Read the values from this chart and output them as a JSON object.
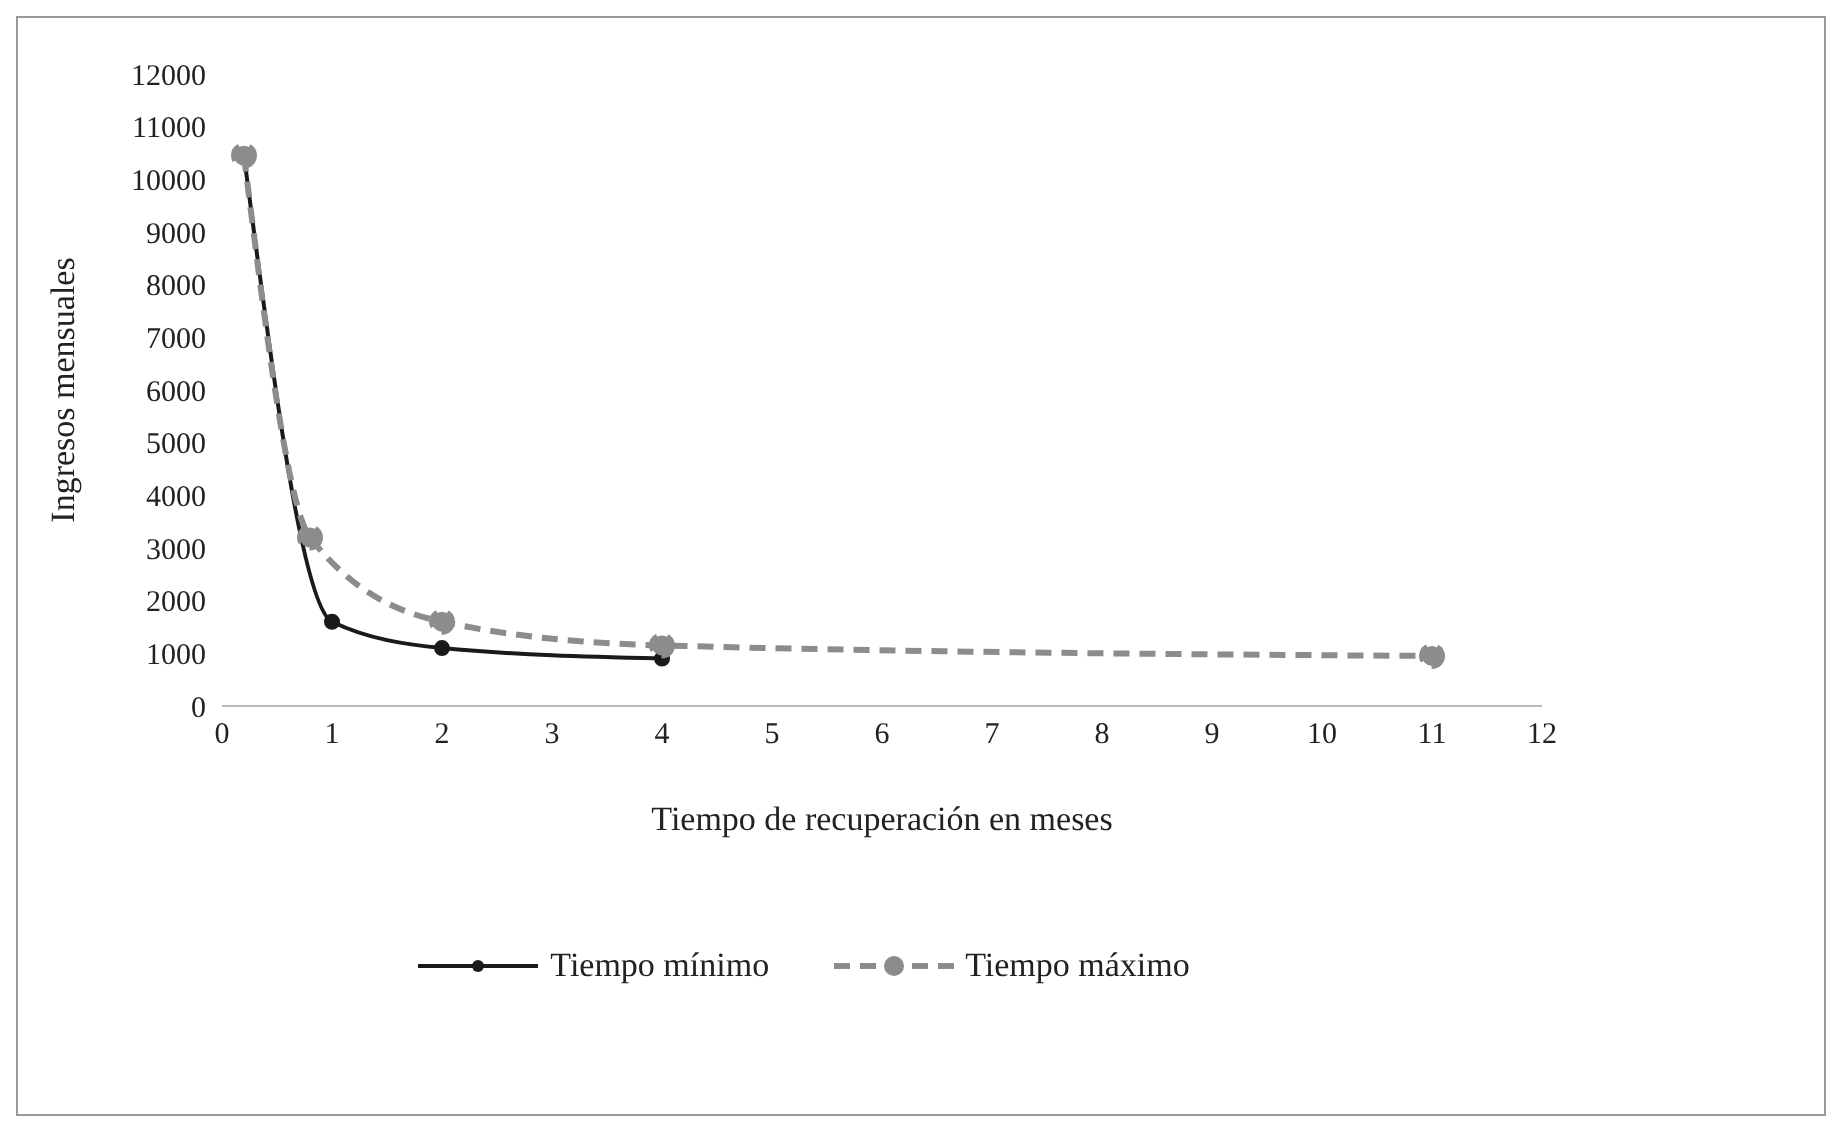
{
  "chart_data": {
    "type": "line",
    "xlabel": "Tiempo de recuperación en meses",
    "ylabel": "Ingresos mensuales",
    "xlim": [
      0,
      12
    ],
    "xticks": [
      0,
      1,
      2,
      3,
      4,
      5,
      6,
      7,
      8,
      9,
      10,
      11,
      12
    ],
    "ylim": [
      0,
      12000
    ],
    "yticks": [
      0,
      1000,
      2000,
      3000,
      4000,
      5000,
      6000,
      7000,
      8000,
      9000,
      10000,
      11000,
      12000
    ],
    "grid": false,
    "legend": "bottom",
    "marker": "circle",
    "series": [
      {
        "name": "Tiempo mínimo",
        "color": "#1a1a1a",
        "line_style": "solid",
        "x": [
          0.2,
          1,
          2,
          4
        ],
        "values": [
          10450,
          1600,
          1100,
          900
        ]
      },
      {
        "name": "Tiempo máximo",
        "color": "#8c8c8c",
        "line_style": "dashed",
        "x": [
          0.2,
          0.8,
          2,
          4,
          11
        ],
        "values": [
          10450,
          3200,
          1600,
          1150,
          950
        ]
      }
    ]
  }
}
